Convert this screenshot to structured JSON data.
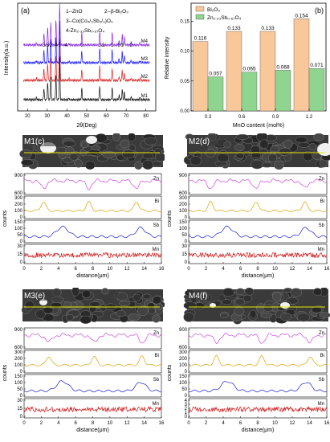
{
  "xrd": {
    "tag": "(a)",
    "legend": [
      "1--ZnO",
      "2--β-Bi₂O₃",
      "3--Co(Co₄/₃Sb₂/₃)O₄",
      "4-Zn₂.₃₃Sb₀.₆₇O₄"
    ],
    "xlabel": "2θ(Deg)",
    "ylabel": "Intensity(a.u.)",
    "xticks": [
      "20",
      "30",
      "40",
      "50",
      "60",
      "70",
      "80"
    ],
    "series": [
      {
        "name": "M4",
        "color": "#8a2be2"
      },
      {
        "name": "M3",
        "color": "#1a1aff"
      },
      {
        "name": "M2",
        "color": "#d62020"
      },
      {
        "name": "M1",
        "color": "#111111"
      }
    ],
    "peak_numbers": [
      "3",
      "3",
      "2",
      "4",
      "1",
      "4",
      "1",
      "1",
      "2",
      "1",
      "3",
      "1",
      "2"
    ]
  },
  "chart_data": [
    {
      "type": "bar",
      "tag": "(b)",
      "categories": [
        "0.3",
        "0.6",
        "0.9",
        "1.2"
      ],
      "series": [
        {
          "name": "Bi₂O₃",
          "color": "#f8c79a",
          "values": [
            0.116,
            0.133,
            0.133,
            0.154
          ],
          "labels": [
            "0.116",
            "0.133",
            "0.133",
            "0.154"
          ]
        },
        {
          "name": "Zn₂.₃₃Sb₀.₆₇O₄",
          "color": "#8fd48f",
          "values": [
            0.057,
            0.065,
            0.068,
            0.071
          ],
          "labels": [
            "0.057",
            "0.065",
            "0.068",
            "0.071"
          ]
        }
      ],
      "xlabel": "MnO content (mol%)",
      "ylabel": "Relative intensity",
      "ylim": [
        0,
        0.18
      ],
      "yticks": [
        "0.00",
        "0.05",
        "0.10",
        "0.15"
      ]
    }
  ],
  "linescans": [
    {
      "title": "M1(c)",
      "profiles": [
        {
          "el": "Zn",
          "ticks": [
            "600",
            "900"
          ]
        },
        {
          "el": "Bi",
          "ticks": [
            "0",
            "100",
            "200",
            "300"
          ]
        },
        {
          "el": "Sb",
          "ticks": [
            "0",
            "50",
            "100",
            "150"
          ]
        },
        {
          "el": "Mn",
          "ticks": [
            "0",
            "15",
            "30"
          ]
        }
      ]
    },
    {
      "title": "M2(d)",
      "profiles": [
        {
          "el": "Zn",
          "ticks": [
            "600",
            "900"
          ]
        },
        {
          "el": "Bi",
          "ticks": [
            "0",
            "100",
            "200",
            "300"
          ]
        },
        {
          "el": "Sb",
          "ticks": [
            "0",
            "50",
            "100",
            "150"
          ]
        },
        {
          "el": "Mn",
          "ticks": [
            "0",
            "15",
            "30"
          ]
        }
      ]
    },
    {
      "title": "M3(e)",
      "profiles": [
        {
          "el": "Zn",
          "ticks": [
            "600",
            "900"
          ]
        },
        {
          "el": "Bi",
          "ticks": [
            "0",
            "100",
            "200",
            "300"
          ]
        },
        {
          "el": "Sb",
          "ticks": [
            "0",
            "50",
            "100",
            "150"
          ]
        },
        {
          "el": "Mn",
          "ticks": [
            "0",
            "15",
            "30"
          ]
        }
      ]
    },
    {
      "title": "M4(f)",
      "profiles": [
        {
          "el": "Zn",
          "ticks": [
            "600",
            "900"
          ]
        },
        {
          "el": "Bi",
          "ticks": [
            "0",
            "100",
            "200",
            "300"
          ]
        },
        {
          "el": "Sb",
          "ticks": [
            "0",
            "50",
            "100",
            "150"
          ]
        },
        {
          "el": "Mn",
          "ticks": [
            "0",
            "1",
            "2",
            "3",
            "4"
          ]
        }
      ]
    }
  ],
  "linescan_common": {
    "ylabel": "counts",
    "xlabel": "distance(μm)",
    "xticks": [
      "0",
      "2",
      "4",
      "6",
      "8",
      "10",
      "12",
      "14",
      "16"
    ],
    "colors": {
      "Zn": "#cc44dd",
      "Bi": "#d9a000",
      "Sb": "#1a1acc",
      "Mn": "#cc1a1a",
      "scanline": "#e8e800"
    }
  }
}
